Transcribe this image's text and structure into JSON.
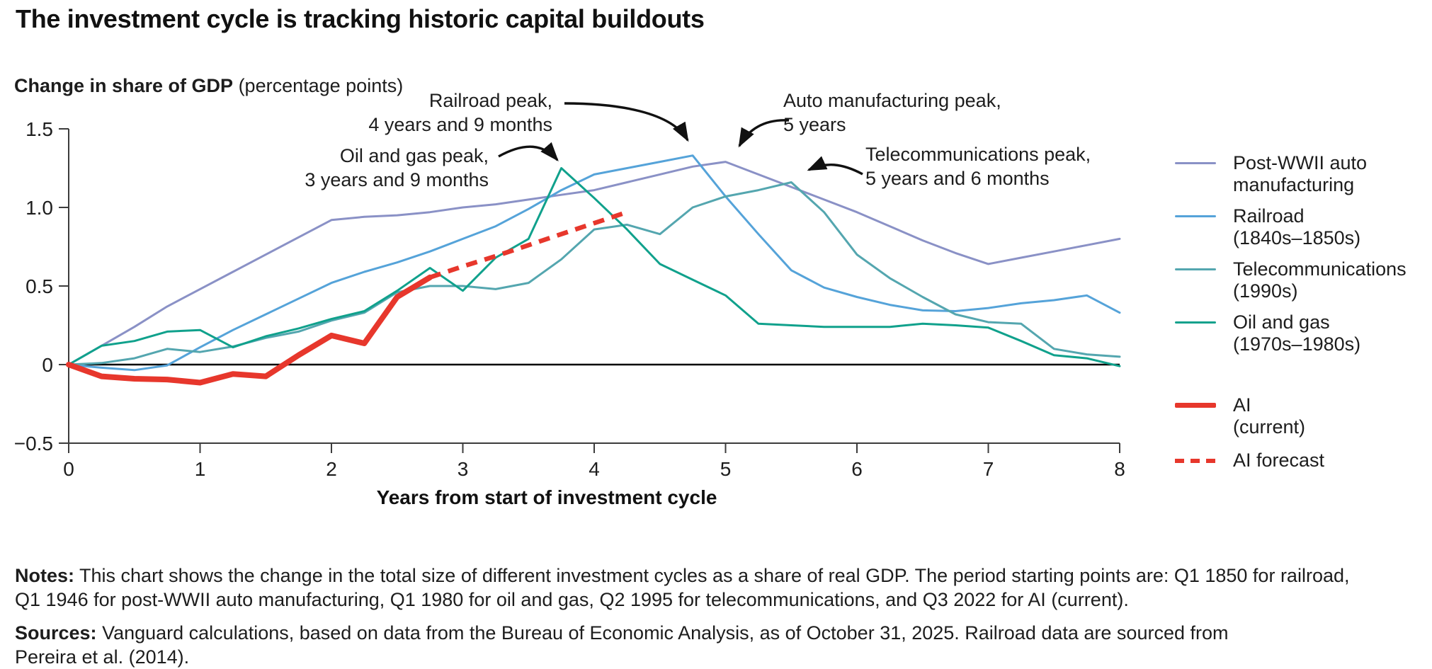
{
  "title": "The investment cycle is tracking historic capital buildouts",
  "chart_data": {
    "type": "line",
    "y_axis_title_bold": "Change in share of GDP",
    "y_axis_title_note": " (percentage points)",
    "xlabel": "Years from start of investment cycle",
    "xlim": [
      0,
      8
    ],
    "ylim": [
      -0.5,
      1.5
    ],
    "grid": false,
    "zero_line": true,
    "legend_position": "right",
    "yticks": [
      {
        "label": "1.5",
        "value": 1.5
      },
      {
        "label": "1.0",
        "value": 1.0
      },
      {
        "label": "0.5",
        "value": 0.5
      },
      {
        "label": "0",
        "value": 0
      },
      {
        "label": "−0.5",
        "value": -0.5
      }
    ],
    "xticks": [
      0,
      1,
      2,
      3,
      4,
      5,
      6,
      7,
      8
    ],
    "series": [
      {
        "id": "postwar-auto",
        "name": "Post-WWII auto manufacturing",
        "color": "#8a91c6",
        "width": 3,
        "dash": null,
        "x_start": 0,
        "x_step": 0.25,
        "values": [
          0,
          0.12,
          0.24,
          0.37,
          0.48,
          0.59,
          0.7,
          0.81,
          0.92,
          0.94,
          0.95,
          0.97,
          1.0,
          1.02,
          1.05,
          1.08,
          1.11,
          1.16,
          1.21,
          1.26,
          1.29,
          1.21,
          1.13,
          1.05,
          0.97,
          0.88,
          0.79,
          0.71,
          0.64,
          0.68,
          0.72,
          0.76,
          0.8
        ]
      },
      {
        "id": "railroad",
        "name": "Railroad (1840s–1850s)",
        "color": "#55a3d9",
        "width": 3,
        "dash": null,
        "x_start": 0,
        "x_step": 0.25,
        "values": [
          0,
          -0.02,
          -0.035,
          -0.005,
          0.11,
          0.22,
          0.32,
          0.42,
          0.52,
          0.59,
          0.65,
          0.72,
          0.8,
          0.88,
          0.99,
          1.11,
          1.21,
          1.25,
          1.29,
          1.33,
          1.07,
          0.83,
          0.6,
          0.49,
          0.43,
          0.38,
          0.345,
          0.34,
          0.36,
          0.39,
          0.41,
          0.44,
          0.33
        ]
      },
      {
        "id": "telecom",
        "name": "Telecommunications (1990s)",
        "color": "#54a6af",
        "width": 3,
        "dash": null,
        "x_start": 0,
        "x_step": 0.25,
        "values": [
          0,
          0.01,
          0.04,
          0.1,
          0.08,
          0.115,
          0.17,
          0.21,
          0.28,
          0.33,
          0.46,
          0.5,
          0.5,
          0.48,
          0.52,
          0.67,
          0.86,
          0.89,
          0.83,
          1.0,
          1.07,
          1.11,
          1.16,
          0.97,
          0.7,
          0.55,
          0.43,
          0.32,
          0.27,
          0.26,
          0.1,
          0.065,
          0.05
        ]
      },
      {
        "id": "oil-gas",
        "name": "Oil and gas (1970s–1980s)",
        "color": "#10a18c",
        "width": 3,
        "dash": null,
        "x_start": 0,
        "x_step": 0.25,
        "values": [
          0,
          0.12,
          0.15,
          0.21,
          0.22,
          0.11,
          0.18,
          0.23,
          0.29,
          0.34,
          0.47,
          0.615,
          0.47,
          0.68,
          0.8,
          1.25,
          1.06,
          0.86,
          0.64,
          0.54,
          0.44,
          0.26,
          0.25,
          0.24,
          0.24,
          0.24,
          0.26,
          0.25,
          0.235,
          0.15,
          0.06,
          0.04,
          -0.01
        ]
      },
      {
        "id": "ai-current",
        "name": "AI (current)",
        "color": "#e7372c",
        "width": 8,
        "dash": null,
        "x_start": 0,
        "x_step": 0.25,
        "values": [
          0,
          -0.075,
          -0.09,
          -0.095,
          -0.115,
          -0.06,
          -0.075,
          0.06,
          0.185,
          0.135,
          0.43,
          0.555
        ]
      },
      {
        "id": "ai-forecast",
        "name": "AI forecast",
        "color": "#e7372c",
        "width": 6.5,
        "dash": "16 11",
        "x_start": 2.75,
        "x_step": 0.25,
        "values": [
          0.555,
          0.625,
          0.69,
          0.76,
          0.83,
          0.9,
          0.97
        ]
      }
    ],
    "annotations": [
      {
        "lines": [
          "Oil and gas peak,",
          "3 years and 9 months"
        ],
        "target_x": 3.75,
        "target_y": 1.25
      },
      {
        "lines": [
          "Railroad peak,",
          "4 years and 9 months"
        ],
        "target_x": 4.75,
        "target_y": 1.33
      },
      {
        "lines": [
          "Auto manufacturing peak,",
          "5 years"
        ],
        "target_x": 5.0,
        "target_y": 1.29
      },
      {
        "lines": [
          "Telecommunications peak,",
          "5 years and 6 months"
        ],
        "target_x": 5.5,
        "target_y": 1.16
      }
    ]
  },
  "legend": {
    "items": [
      {
        "lines": [
          "Post-WWII auto",
          "manufacturing"
        ],
        "color": "#8a91c6",
        "style": "solid",
        "thick": false
      },
      {
        "lines": [
          "Railroad",
          "(1840s–1850s)"
        ],
        "color": "#55a3d9",
        "style": "solid",
        "thick": false
      },
      {
        "lines": [
          "Telecommunications",
          "(1990s)"
        ],
        "color": "#54a6af",
        "style": "solid",
        "thick": false
      },
      {
        "lines": [
          "Oil and gas",
          "(1970s–1980s)"
        ],
        "color": "#10a18c",
        "style": "solid",
        "thick": false
      },
      {
        "lines": [
          "AI",
          "(current)"
        ],
        "color": "#e7372c",
        "style": "solid",
        "thick": true
      },
      {
        "lines": [
          "AI forecast"
        ],
        "color": "#e7372c",
        "style": "dashed",
        "thick": true
      }
    ]
  },
  "notes": {
    "label": "Notes:",
    "line1": "This chart shows the change in the total size of different investment cycles as a share of real GDP. The period starting points are: Q1 1850 for railroad,",
    "line2": "Q1 1946 for post-WWII auto manufacturing, Q1 1980 for oil and gas, Q2 1995 for telecommunications, and Q3 2022 for AI (current)."
  },
  "sources": {
    "label": "Sources:",
    "line1": "Vanguard calculations, based on data from the Bureau of Economic Analysis, as of October 31, 2025. Railroad data are sourced from",
    "line2": "Pereira et al. (2014)."
  }
}
